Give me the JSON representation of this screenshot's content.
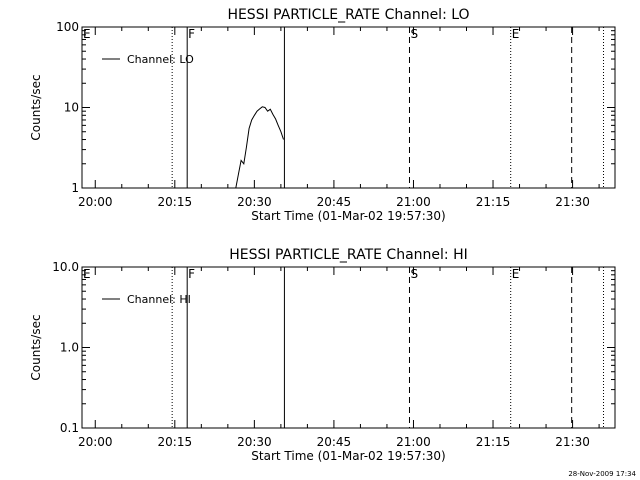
{
  "chart_data": [
    {
      "type": "line",
      "title": "HESSI PARTICLE_RATE Channel: LO",
      "xlabel": "Start Time (01-Mar-02 19:57:30)",
      "ylabel": "Counts/sec",
      "yscale": "log",
      "ylim": [
        1,
        100
      ],
      "xlim": [
        "19:57:30",
        "21:38:00"
      ],
      "x_ticks": [
        "20:00",
        "20:15",
        "20:30",
        "20:45",
        "21:00",
        "21:15",
        "21:30"
      ],
      "y_ticks": [
        "1",
        "10",
        "100"
      ],
      "grid": false,
      "legend": {
        "position": "top-left",
        "entries": [
          "Channel: LO"
        ]
      },
      "series": [
        {
          "name": "Channel: LO",
          "x": [
            "20:26:30",
            "20:27:00",
            "20:27:30",
            "20:28:00",
            "20:28:30",
            "20:29:00",
            "20:29:30",
            "20:30:00",
            "20:30:30",
            "20:31:00",
            "20:31:30",
            "20:32:00",
            "20:32:30",
            "20:33:00",
            "20:33:30",
            "20:34:00",
            "20:34:30",
            "20:35:00",
            "20:35:30"
          ],
          "values": [
            1.0,
            1.5,
            2.2,
            2.0,
            3.2,
            5.5,
            7.0,
            8.0,
            9.0,
            9.6,
            10.2,
            10.0,
            9.0,
            9.5,
            8.2,
            7.2,
            6.0,
            5.0,
            4.0
          ]
        }
      ],
      "annotations": [
        {
          "time": "20:14:30",
          "style": "dotted",
          "label": ""
        },
        {
          "time": "20:17:20",
          "style": "solid",
          "label": "F"
        },
        {
          "time": "20:35:40",
          "style": "solid",
          "label": ""
        },
        {
          "time": "20:59:15",
          "style": "dashed",
          "label": "S"
        },
        {
          "time": "21:18:20",
          "style": "dotted",
          "label": "E"
        },
        {
          "time": "21:29:50",
          "style": "dashed",
          "label": ""
        },
        {
          "time": "21:35:50",
          "style": "dotted",
          "label": ""
        }
      ],
      "corner_label": "E"
    },
    {
      "type": "line",
      "title": "HESSI PARTICLE_RATE Channel: HI",
      "xlabel": "Start Time (01-Mar-02 19:57:30)",
      "ylabel": "Counts/sec",
      "yscale": "log",
      "ylim": [
        0.1,
        10
      ],
      "xlim": [
        "19:57:30",
        "21:38:00"
      ],
      "x_ticks": [
        "20:00",
        "20:15",
        "20:30",
        "20:45",
        "21:00",
        "21:15",
        "21:30"
      ],
      "y_ticks": [
        "0.1",
        "1.0",
        "10.0"
      ],
      "grid": false,
      "legend": {
        "position": "top-left",
        "entries": [
          "Channel: HI"
        ]
      },
      "series": [
        {
          "name": "Channel: HI",
          "x": [],
          "values": []
        }
      ],
      "annotations": [
        {
          "time": "20:14:30",
          "style": "dotted",
          "label": ""
        },
        {
          "time": "20:17:20",
          "style": "solid",
          "label": "F"
        },
        {
          "time": "20:35:40",
          "style": "solid",
          "label": ""
        },
        {
          "time": "20:59:15",
          "style": "dashed",
          "label": "S"
        },
        {
          "time": "21:18:20",
          "style": "dotted",
          "label": "E"
        },
        {
          "time": "21:29:50",
          "style": "dashed",
          "label": ""
        },
        {
          "time": "21:35:50",
          "style": "dotted",
          "label": ""
        }
      ],
      "corner_label": "E"
    }
  ],
  "footer": {
    "timestamp": "28-Nov-2009 17:34"
  }
}
